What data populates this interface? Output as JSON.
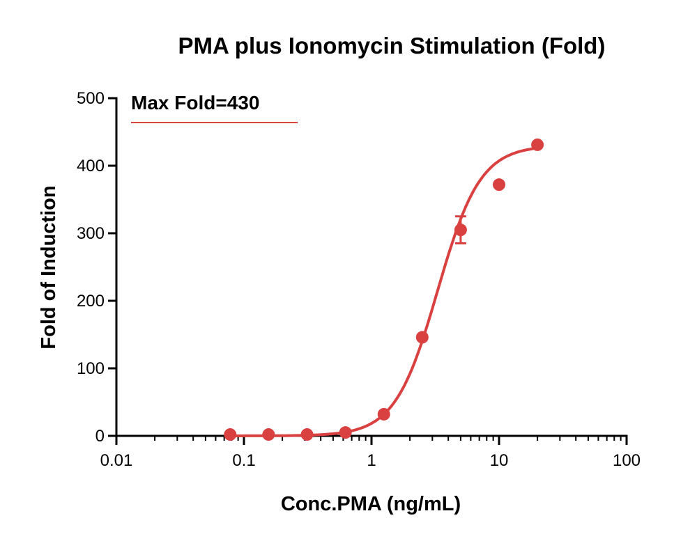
{
  "chart_data": {
    "type": "scatter",
    "title": "PMA plus Ionomycin Stimulation (Fold)",
    "xlabel": "Conc.PMA (ng/mL)",
    "ylabel": "Fold of Induction",
    "x_scale": "log",
    "xlim": [
      0.01,
      100
    ],
    "ylim": [
      0,
      500
    ],
    "x_ticks": [
      "0.01",
      "0.1",
      "1",
      "10",
      "100"
    ],
    "y_ticks": [
      "0",
      "100",
      "200",
      "300",
      "400",
      "500"
    ],
    "grid": false,
    "annotation": "Max Fold=430",
    "color": "#d94040",
    "series": [
      {
        "points": [
          {
            "x": 0.078,
            "y": 2
          },
          {
            "x": 0.156,
            "y": 2
          },
          {
            "x": 0.3125,
            "y": 2
          },
          {
            "x": 0.625,
            "y": 5
          },
          {
            "x": 1.25,
            "y": 32
          },
          {
            "x": 2.5,
            "y": 146
          },
          {
            "x": 5,
            "y": 305,
            "err": 20
          },
          {
            "x": 10,
            "y": 372
          },
          {
            "x": 20,
            "y": 431
          }
        ],
        "fit": {
          "model": "4PL",
          "bottom": 0,
          "top": 430,
          "ec50": 3.3,
          "hill": 2.6,
          "x_range": [
            0.078,
            20
          ]
        }
      }
    ]
  }
}
